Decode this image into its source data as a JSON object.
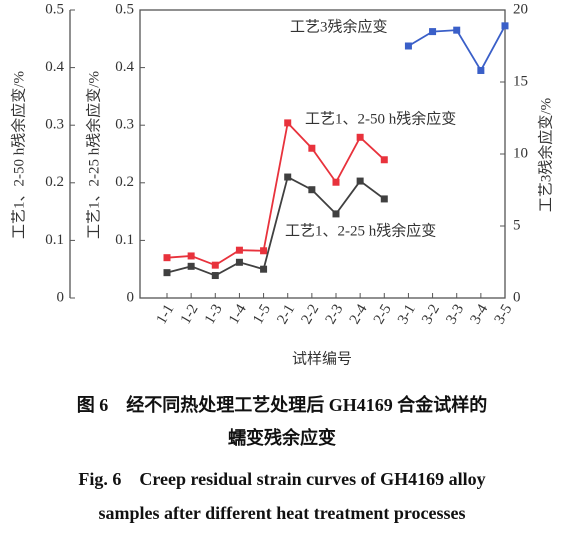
{
  "chart_data": {
    "type": "line",
    "x_label": "试样编号",
    "y_label": "工艺1、2-50 h残余应变/%",
    "y_label_inner": "工艺1、2-25 h残余应变/%",
    "y2_label": "工艺3残余应变/%",
    "categories": [
      "1-1",
      "1-2",
      "1-3",
      "1-4",
      "1-5",
      "2-1",
      "2-2",
      "2-3",
      "2-4",
      "2-5",
      "3-1",
      "3-2",
      "3-3",
      "3-4",
      "3-5"
    ],
    "ylim": [
      0,
      0.5
    ],
    "yticks": [
      0,
      0.1,
      0.2,
      0.3,
      0.4,
      0.5
    ],
    "y2lim": [
      0,
      20
    ],
    "y2ticks": [
      0,
      5,
      10,
      15,
      20
    ],
    "series": [
      {
        "name": "工艺3残余应变",
        "color": "#3a5fc8",
        "axis": "y2",
        "values": [
          null,
          null,
          null,
          null,
          null,
          null,
          null,
          null,
          null,
          null,
          17.5,
          18.5,
          18.6,
          15.8,
          18.9
        ]
      },
      {
        "name": "工艺1、2-50 h残余应变",
        "color": "#e8323c",
        "values": [
          0.07,
          0.073,
          0.057,
          0.083,
          0.082,
          0.304,
          0.26,
          0.201,
          0.279,
          0.24,
          null,
          null,
          null,
          null,
          null
        ]
      },
      {
        "name": "工艺1、2-25 h残余应变",
        "color": "#404040",
        "values": [
          0.044,
          0.055,
          0.039,
          0.062,
          0.05,
          0.21,
          0.188,
          0.146,
          0.203,
          0.172,
          null,
          null,
          null,
          null,
          null
        ]
      }
    ],
    "caption_cn": [
      "图 6　经不同热处理工艺处理后 GH4169 合金试样的",
      "蠕变残余应变"
    ],
    "caption_en": [
      "Fig. 6　Creep residual strain curves of GH4169 alloy",
      "samples after different heat treatment processes"
    ]
  }
}
